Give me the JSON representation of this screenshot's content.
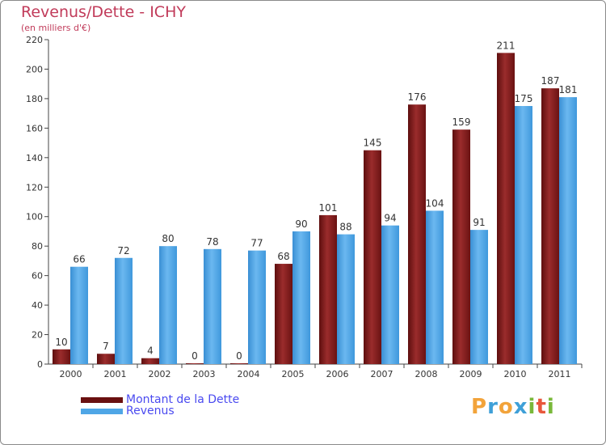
{
  "chart_data": {
    "type": "bar",
    "title": "Revenus/Dette - ICHY",
    "subtitle": "(en milliers d'€)",
    "categories": [
      "2000",
      "2001",
      "2002",
      "2003",
      "2004",
      "2005",
      "2006",
      "2007",
      "2008",
      "2009",
      "2010",
      "2011"
    ],
    "series": [
      {
        "name": "Montant de la Dette",
        "color": "#7a1616",
        "values": [
          10,
          7,
          4,
          0,
          0,
          68,
          101,
          145,
          176,
          159,
          211,
          187
        ]
      },
      {
        "name": "Revenus",
        "color": "#4fa6e6",
        "values": [
          66,
          72,
          80,
          78,
          77,
          90,
          88,
          94,
          104,
          91,
          175,
          181
        ]
      }
    ],
    "ylim": [
      0,
      220
    ],
    "yticks": [
      0,
      20,
      40,
      60,
      80,
      100,
      120,
      140,
      160,
      180,
      200,
      220
    ],
    "grid": false,
    "legend_position": "bottom-left"
  },
  "branding": {
    "logo_letters": [
      "P",
      "r",
      "o",
      "x",
      "i",
      "t",
      "i"
    ],
    "logo_colors": [
      "#f2a33a",
      "#3fa0d8",
      "#f2a33a",
      "#3fa0d8",
      "#79b83a",
      "#e8573c",
      "#79b83a"
    ]
  }
}
